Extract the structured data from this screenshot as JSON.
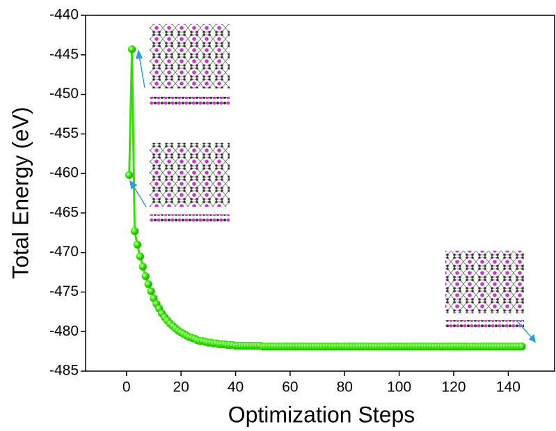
{
  "chart_data": {
    "type": "line",
    "x_label": "Optimization Steps",
    "y_label": "Total Energy (eV)",
    "xlim": [
      -15,
      157
    ],
    "xticks": [
      0,
      20,
      40,
      60,
      80,
      100,
      120,
      140
    ],
    "ylim": [
      -485,
      -440
    ],
    "yticks": [
      -485,
      -480,
      -475,
      -470,
      -465,
      -460,
      -455,
      -450,
      -445,
      -440
    ],
    "series": [
      {
        "color": "#33e000",
        "x": [
          1,
          2,
          3,
          4,
          5,
          6,
          7,
          8,
          9,
          10,
          11,
          12,
          13,
          14,
          15,
          16,
          17,
          18,
          19,
          20,
          21,
          22,
          23,
          24,
          25,
          26,
          27,
          28,
          29,
          30,
          31,
          32,
          33,
          34,
          35,
          36,
          37,
          38,
          39,
          40,
          41,
          42,
          43,
          44,
          45,
          46,
          47,
          48,
          49,
          50,
          51,
          52,
          53,
          54,
          55,
          56,
          57,
          58,
          59,
          60,
          61,
          62,
          63,
          64,
          65,
          66,
          67,
          68,
          69,
          70,
          71,
          72,
          73,
          74,
          75,
          76,
          77,
          78,
          79,
          80,
          81,
          82,
          83,
          84,
          85,
          86,
          87,
          88,
          89,
          90,
          91,
          92,
          93,
          94,
          95,
          96,
          97,
          98,
          99,
          100,
          101,
          102,
          103,
          104,
          105,
          106,
          107,
          108,
          109,
          110,
          111,
          112,
          113,
          114,
          115,
          116,
          117,
          118,
          119,
          120,
          121,
          122,
          123,
          124,
          125,
          126,
          127,
          128,
          129,
          130,
          131,
          132,
          133,
          134,
          135,
          136,
          137,
          138,
          139,
          140,
          141,
          142,
          143,
          144,
          145
        ],
        "values": [
          -460.2,
          -444.3,
          -467.3,
          -469.0,
          -470.5,
          -471.8,
          -473.0,
          -474.0,
          -474.9,
          -475.8,
          -476.5,
          -477.1,
          -477.7,
          -478.2,
          -478.6,
          -479.0,
          -479.3,
          -479.6,
          -479.9,
          -480.1,
          -480.3,
          -480.5,
          -480.7,
          -480.8,
          -480.9,
          -481.1,
          -481.2,
          -481.2,
          -481.3,
          -481.4,
          -481.4,
          -481.5,
          -481.5,
          -481.6,
          -481.6,
          -481.6,
          -481.7,
          -481.7,
          -481.7,
          -481.8,
          -481.8,
          -481.8,
          -481.8,
          -481.8,
          -481.8,
          -481.8,
          -481.8,
          -481.8,
          -481.8,
          -481.9,
          -481.9,
          -481.9,
          -481.9,
          -481.9,
          -481.9,
          -481.9,
          -481.9,
          -481.9,
          -481.9,
          -481.9,
          -481.9,
          -481.9,
          -481.9,
          -481.9,
          -481.9,
          -481.9,
          -481.9,
          -481.9,
          -481.9,
          -481.9,
          -481.9,
          -481.9,
          -481.9,
          -481.9,
          -481.9,
          -481.9,
          -481.9,
          -481.9,
          -481.9,
          -481.9,
          -481.9,
          -481.9,
          -481.9,
          -481.9,
          -481.9,
          -481.9,
          -481.9,
          -481.9,
          -481.9,
          -481.9,
          -481.9,
          -481.9,
          -481.9,
          -481.9,
          -481.9,
          -481.9,
          -481.9,
          -481.9,
          -481.9,
          -481.9,
          -481.9,
          -481.9,
          -481.9,
          -481.9,
          -481.9,
          -481.9,
          -481.9,
          -481.9,
          -481.9,
          -481.9,
          -481.9,
          -481.9,
          -481.9,
          -481.9,
          -481.9,
          -481.9,
          -481.9,
          -481.9,
          -481.9,
          -481.9,
          -481.9,
          -481.9,
          -481.9,
          -481.9,
          -481.9,
          -481.9,
          -481.9,
          -481.9,
          -481.9,
          -481.9,
          -481.9,
          -481.9,
          -481.9,
          -481.9,
          -481.9,
          -481.9,
          -481.9,
          -481.9,
          -481.9,
          -481.9,
          -481.9,
          -481.9,
          -481.9,
          -481.9,
          -481.9
        ]
      }
    ]
  }
}
